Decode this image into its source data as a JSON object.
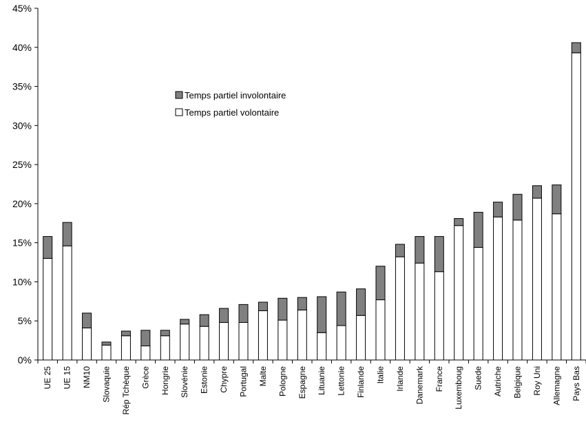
{
  "chart_data": {
    "type": "bar",
    "stacked": true,
    "categories": [
      "UE 25",
      "UE 15",
      "NM10",
      "Slovaquie",
      "Rép Tchèque",
      "Grèce",
      "Hongrie",
      "Slovénie",
      "Estonie",
      "Chypre",
      "Portugal",
      "Malte",
      "Pologne",
      "Espagne",
      "Lituanie",
      "Lettonie",
      "Finlande",
      "Italie",
      "Irlande",
      "Danemark",
      "France",
      "Luxemboug",
      "Suede",
      "Autriche",
      "Belgique",
      "Roy Uni",
      "Allemagne",
      "Pays Bas"
    ],
    "series": [
      {
        "name": "Temps partiel volontaire",
        "color": "#ffffff",
        "values": [
          13.0,
          14.6,
          4.1,
          1.9,
          3.1,
          1.8,
          3.1,
          4.6,
          4.3,
          4.8,
          4.8,
          6.3,
          5.1,
          6.4,
          3.5,
          4.4,
          5.7,
          7.7,
          13.2,
          12.4,
          11.3,
          17.2,
          14.4,
          18.3,
          17.9,
          20.7,
          18.7,
          39.3
        ]
      },
      {
        "name": "Temps partiel involontaire",
        "color": "#808080",
        "values": [
          2.8,
          3.0,
          1.9,
          0.4,
          0.6,
          2.0,
          0.7,
          0.6,
          1.5,
          1.8,
          2.3,
          1.1,
          2.8,
          1.6,
          4.6,
          4.3,
          3.4,
          4.3,
          1.6,
          3.4,
          4.5,
          0.9,
          4.5,
          1.9,
          3.3,
          1.6,
          3.7,
          1.3
        ]
      }
    ],
    "ylim": [
      0,
      45
    ],
    "yticks": [
      "0%",
      "5%",
      "10%",
      "15%",
      "20%",
      "25%",
      "30%",
      "35%",
      "40%",
      "45%"
    ],
    "legend": [
      "Temps partiel involontaire",
      "Temps partiel volontaire"
    ],
    "legend_position": "upper-left-center",
    "grid": false
  }
}
